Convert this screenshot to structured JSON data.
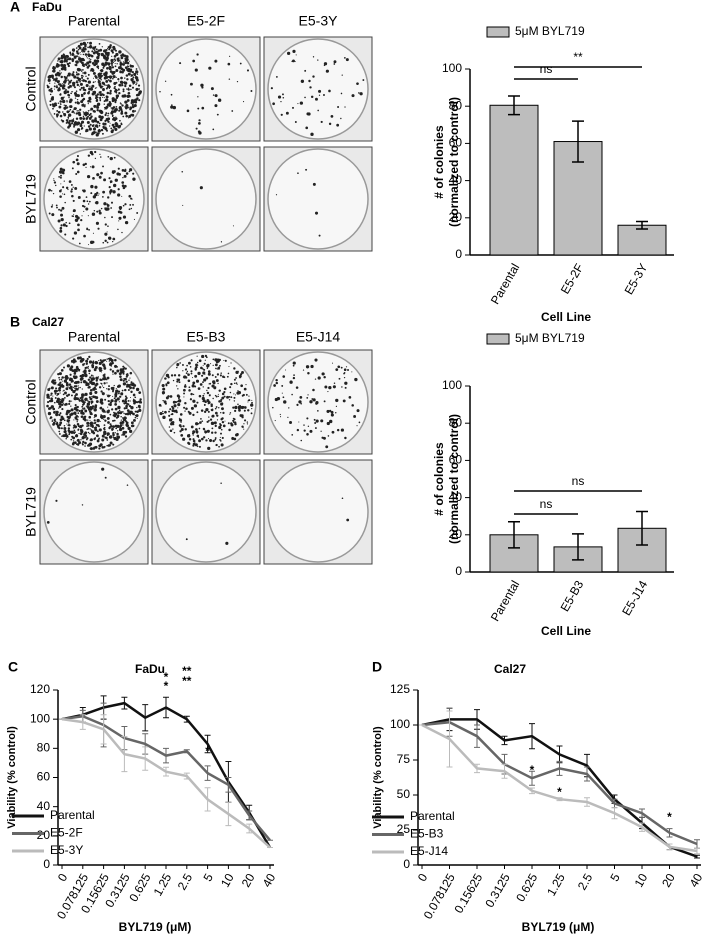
{
  "panels": [
    {
      "label": "A",
      "cell_line": "FaDu",
      "columns": [
        "Parental",
        "E5-2F",
        "E5-3Y"
      ],
      "rows": [
        "Control",
        "BYL719"
      ]
    },
    {
      "label": "B",
      "cell_line": "Cal27",
      "columns": [
        "Parental",
        "E5-B3",
        "E5-J14"
      ],
      "rows": [
        "Control",
        "BYL719"
      ]
    },
    {
      "label": "C"
    },
    {
      "label": "D"
    }
  ],
  "chart_data": [
    {
      "type": "bar",
      "categories": [
        "Parental",
        "E5-2F",
        "E5-3Y"
      ],
      "series": [
        {
          "name": "5μM BYL719",
          "color": "#bdbdbd",
          "values": [
            80.5,
            61,
            16
          ],
          "errors": [
            5,
            11,
            2
          ]
        }
      ],
      "ylabel": [
        "# of colonies",
        "(normalized to control)"
      ],
      "xlabel": "Cell Line",
      "ylim": [
        0,
        100
      ],
      "yticks": [
        0,
        20,
        40,
        60,
        80,
        100
      ],
      "annotations": [
        {
          "text": "ns",
          "color": "#000000"
        },
        {
          "text": "**",
          "color": "#000000"
        }
      ]
    },
    {
      "type": "bar",
      "categories": [
        "Parental",
        "E5-B3",
        "E5-J14"
      ],
      "series": [
        {
          "name": "5μM BYL719",
          "color": "#bdbdbd",
          "values": [
            20,
            13.5,
            23.5
          ],
          "errors": [
            7,
            7,
            9
          ]
        }
      ],
      "ylabel": [
        "# of colonies",
        "(normalized to control)"
      ],
      "xlabel": "Cell Line",
      "ylim": [
        0,
        100
      ],
      "yticks": [
        0,
        20,
        40,
        60,
        80,
        100
      ],
      "annotations": [
        {
          "text": "ns",
          "color": "#000000"
        },
        {
          "text": "ns",
          "color": "#000000"
        }
      ]
    },
    {
      "type": "line",
      "title": "FaDu",
      "categories": [
        "0",
        "0.078125",
        "0.15625",
        "0.3125",
        "0.625",
        "1.25",
        "2.5",
        "5",
        "10",
        "20",
        "40"
      ],
      "series": [
        {
          "name": "Parental",
          "color": "#111111",
          "values": [
            100,
            103,
            108,
            111,
            101,
            108,
            100,
            83,
            57,
            36,
            12
          ],
          "errors": [
            0,
            5,
            8,
            4,
            9,
            7,
            2,
            6,
            14,
            5,
            0
          ]
        },
        {
          "name": "E5-2F",
          "color": "#666666",
          "values": [
            100,
            102,
            96,
            87,
            83,
            75,
            78,
            63,
            55,
            34,
            17
          ],
          "errors": [
            0,
            4,
            15,
            8,
            7,
            5,
            1,
            5,
            5,
            3,
            0
          ]
        },
        {
          "name": "E5-3Y",
          "color": "#bbbbbb",
          "values": [
            100,
            98,
            93,
            76,
            73,
            64,
            61,
            45,
            35,
            25,
            12
          ],
          "errors": [
            0,
            5,
            10,
            12,
            8,
            3,
            2,
            8,
            8,
            3,
            0
          ]
        }
      ],
      "xlabel": "BYL719 (μM)",
      "ylabel": "Viability (% control)",
      "ylim": [
        0,
        120
      ],
      "yticks": [
        0,
        20,
        40,
        60,
        80,
        100,
        120
      ],
      "annotations": [
        {
          "text": "*",
          "color": "#777777"
        },
        {
          "text": "*",
          "color": "#bbbbbb"
        },
        {
          "text": "**",
          "color": "#777777"
        },
        {
          "text": "**",
          "color": "#bbbbbb"
        },
        {
          "text": "*",
          "color": "#bbbbbb"
        }
      ]
    },
    {
      "type": "line",
      "title": "Cal27",
      "categories": [
        "0",
        "0.078125",
        "0.15625",
        "0.3125",
        "0.625",
        "1.25",
        "2.5",
        "5",
        "10",
        "20",
        "40"
      ],
      "series": [
        {
          "name": "Parental",
          "color": "#111111",
          "values": [
            100,
            104,
            104,
            89,
            92,
            79,
            71,
            47,
            30,
            13,
            6
          ],
          "errors": [
            0,
            8,
            7,
            3,
            9,
            6,
            8,
            3,
            4,
            2,
            1
          ]
        },
        {
          "name": "E5-B3",
          "color": "#666666",
          "values": [
            100,
            102,
            92,
            72,
            62,
            69,
            65,
            44,
            37,
            23,
            15
          ],
          "errors": [
            0,
            10,
            8,
            7,
            5,
            5,
            5,
            3,
            3,
            3,
            3
          ]
        },
        {
          "name": "E5-J14",
          "color": "#bbbbbb",
          "values": [
            100,
            90,
            69,
            67,
            53,
            47,
            45,
            37,
            27,
            13,
            10
          ],
          "errors": [
            0,
            20,
            3,
            5,
            2,
            1,
            3,
            4,
            3,
            2,
            2
          ]
        }
      ],
      "xlabel": "BYL719 (μM)",
      "ylabel": "Viability (% control)",
      "ylim": [
        0,
        125
      ],
      "yticks": [
        0,
        25,
        50,
        75,
        100,
        125
      ],
      "annotations": [
        {
          "text": "*",
          "color": "#bbbbbb"
        },
        {
          "text": "*",
          "color": "#999999"
        },
        {
          "text": "*",
          "color": "#777777"
        }
      ]
    }
  ]
}
